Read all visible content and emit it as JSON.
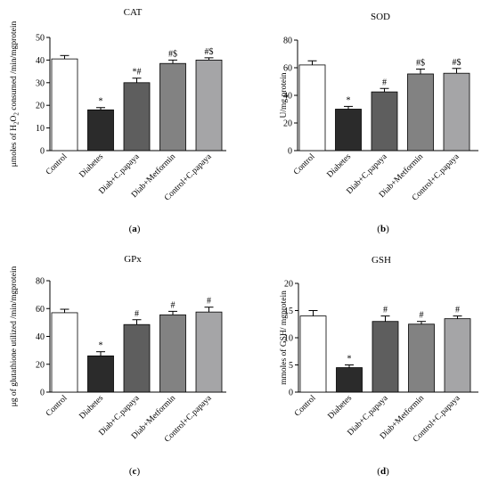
{
  "figure": {
    "category_colors": [
      "#ffffff",
      "#2b2b2b",
      "#5e5e5e",
      "#828282",
      "#a5a5a7"
    ]
  },
  "chart_data": [
    {
      "type": "bar",
      "title": "CAT",
      "panel_label": "(a)",
      "ylabel": "μmoles of H2O2 consumed /min/mgprotein",
      "ylabel_parts": {
        "pre": "μmoles of H",
        "sub1": "2",
        "mid": "O",
        "sub2": "2",
        "post": " consumed /min/mgprotein"
      },
      "categories": [
        "Control",
        "Diabetes",
        "Diab+C.papaya",
        "Diab+Metformin",
        "Control+C.papaya"
      ],
      "values": [
        40.5,
        18,
        30,
        38.5,
        40
      ],
      "errors": [
        1.5,
        1,
        2,
        1.5,
        1
      ],
      "annotations": [
        "",
        "*",
        "*#",
        "#$",
        "#$"
      ],
      "ylim": [
        0,
        50
      ],
      "yticks": [
        0,
        10,
        20,
        30,
        40,
        50
      ]
    },
    {
      "type": "bar",
      "title": "SOD",
      "panel_label": "(b)",
      "ylabel": "U/mg protein",
      "categories": [
        "Control",
        "Diabetes",
        "Diab+C.papaya",
        "Diab+Metformin",
        "Control+C.papaya"
      ],
      "values": [
        62,
        30,
        42.5,
        55.5,
        56
      ],
      "errors": [
        3,
        2,
        2.5,
        3.5,
        3.5
      ],
      "annotations": [
        "",
        "*",
        "#",
        "#$",
        "#$"
      ],
      "ylim": [
        0,
        80
      ],
      "yticks": [
        0,
        20,
        40,
        60,
        80
      ]
    },
    {
      "type": "bar",
      "title": "GPx",
      "panel_label": "(c)",
      "ylabel": "μg of glutathione utilized /min/mgprotein",
      "categories": [
        "Control",
        "Diabetes",
        "Diab+C.papaya",
        "Diab+Metformin",
        "Control+C.papaya"
      ],
      "values": [
        57,
        26,
        48.5,
        55.5,
        57.5
      ],
      "errors": [
        2.5,
        3,
        3.5,
        2.5,
        3.5
      ],
      "annotations": [
        "",
        "*",
        "#",
        "#",
        "#"
      ],
      "ylim": [
        0,
        80
      ],
      "yticks": [
        0,
        20,
        40,
        60,
        80
      ]
    },
    {
      "type": "bar",
      "title": "GSH",
      "panel_label": "(d)",
      "ylabel": "mmoles of GSH/ mgprotein",
      "categories": [
        "Control",
        "Diabetes",
        "Diab+C.papaya",
        "Diab+Metformin",
        "Control+C.papaya"
      ],
      "values": [
        14,
        4.5,
        13,
        12.5,
        13.5
      ],
      "errors": [
        1,
        0.5,
        1,
        0.5,
        0.5
      ],
      "annotations": [
        "",
        "*",
        "#",
        "#",
        "#"
      ],
      "ylim": [
        0,
        20
      ],
      "yticks": [
        0,
        5,
        10,
        15,
        20
      ]
    }
  ]
}
